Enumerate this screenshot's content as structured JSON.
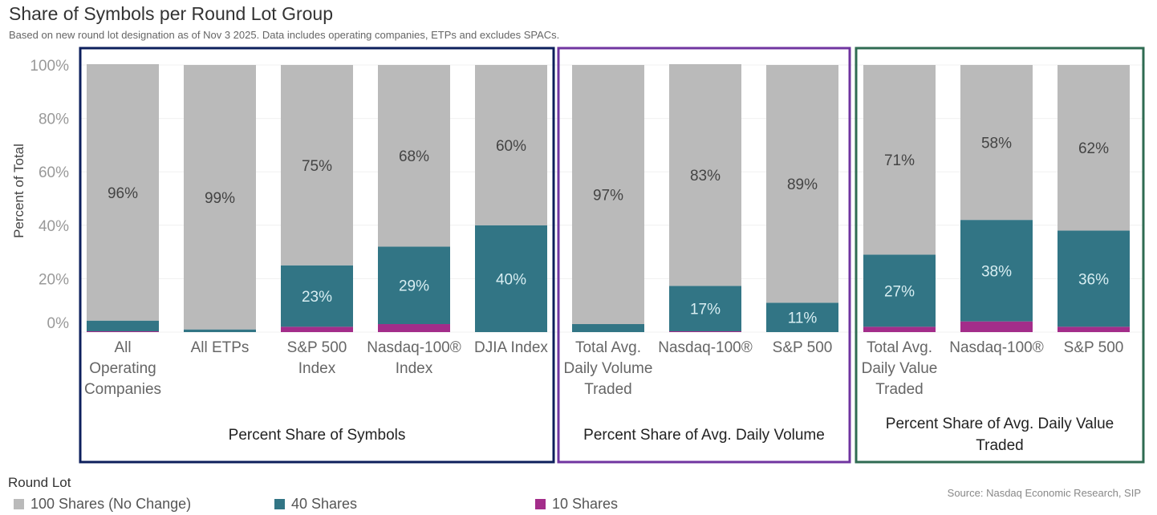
{
  "header": {
    "title": "Share of Symbols per Round Lot Group",
    "subtitle": "Based on new round lot designation as of Nov 3 2025. Data includes operating companies, ETPs and excludes SPACs."
  },
  "colors": {
    "shares_100": "#bababa",
    "shares_40": "#327585",
    "shares_10": "#a32d8a",
    "group_symbols": "#0d1f5c",
    "group_volume": "#7035a0",
    "group_value": "#2f6b52"
  },
  "legend": {
    "title": "Round Lot",
    "items": [
      {
        "label": "100 Shares (No Change)",
        "key": "shares_100"
      },
      {
        "label": "40 Shares",
        "key": "shares_40"
      },
      {
        "label": "10 Shares",
        "key": "shares_10"
      }
    ]
  },
  "source": "Source: Nasdaq Economic Research, SIP",
  "chart_data": {
    "type": "bar",
    "stacked": true,
    "title": "Share of Symbols per Round Lot Group",
    "ylabel": "Percent of Total",
    "ylim": [
      0,
      100
    ],
    "yticks": [
      "0%",
      "20%",
      "40%",
      "60%",
      "80%",
      "100%"
    ],
    "grid": true,
    "legend_position": "bottom-left",
    "series_names": [
      "100 Shares (No Change)",
      "40 Shares",
      "10 Shares"
    ],
    "groups": [
      {
        "name": "Percent Share of Symbols",
        "color_key": "group_symbols",
        "categories": [
          {
            "label": [
              "All",
              "Operating",
              "Companies"
            ],
            "values": [
              96,
              4,
              0.3
            ],
            "labels": [
              "96%",
              "",
              ""
            ]
          },
          {
            "label": [
              "All ETPs"
            ],
            "values": [
              99,
              1,
              0
            ],
            "labels": [
              "99%",
              "",
              ""
            ]
          },
          {
            "label": [
              "S&P 500",
              "Index"
            ],
            "values": [
              75,
              23,
              2
            ],
            "labels": [
              "75%",
              "23%",
              ""
            ]
          },
          {
            "label": [
              "Nasdaq-100®",
              "Index"
            ],
            "values": [
              68,
              29,
              3
            ],
            "labels": [
              "68%",
              "29%",
              ""
            ]
          },
          {
            "label": [
              "DJIA Index"
            ],
            "values": [
              60,
              40,
              0
            ],
            "labels": [
              "60%",
              "40%",
              ""
            ]
          }
        ]
      },
      {
        "name": "Percent Share of Avg. Daily Volume",
        "color_key": "group_volume",
        "categories": [
          {
            "label": [
              "Total Avg.",
              "Daily Volume",
              "Traded"
            ],
            "values": [
              97,
              3,
              0
            ],
            "labels": [
              "97%",
              "",
              ""
            ]
          },
          {
            "label": [
              "Nasdaq-100®"
            ],
            "values": [
              83,
              17,
              0.3
            ],
            "labels": [
              "83%",
              "17%",
              ""
            ]
          },
          {
            "label": [
              "S&P 500"
            ],
            "values": [
              89,
              11,
              0
            ],
            "labels": [
              "89%",
              "11%",
              ""
            ]
          }
        ]
      },
      {
        "name": "Percent Share of Avg. Daily Value Traded",
        "name_lines": [
          "Percent Share of Avg. Daily Value",
          "Traded"
        ],
        "color_key": "group_value",
        "categories": [
          {
            "label": [
              "Total Avg.",
              "Daily Value",
              "Traded"
            ],
            "values": [
              71,
              27,
              2
            ],
            "labels": [
              "71%",
              "27%",
              ""
            ]
          },
          {
            "label": [
              "Nasdaq-100®"
            ],
            "values": [
              58,
              38,
              4
            ],
            "labels": [
              "58%",
              "38%",
              ""
            ]
          },
          {
            "label": [
              "S&P 500"
            ],
            "values": [
              62,
              36,
              2
            ],
            "labels": [
              "62%",
              "36%",
              ""
            ]
          }
        ]
      }
    ]
  }
}
